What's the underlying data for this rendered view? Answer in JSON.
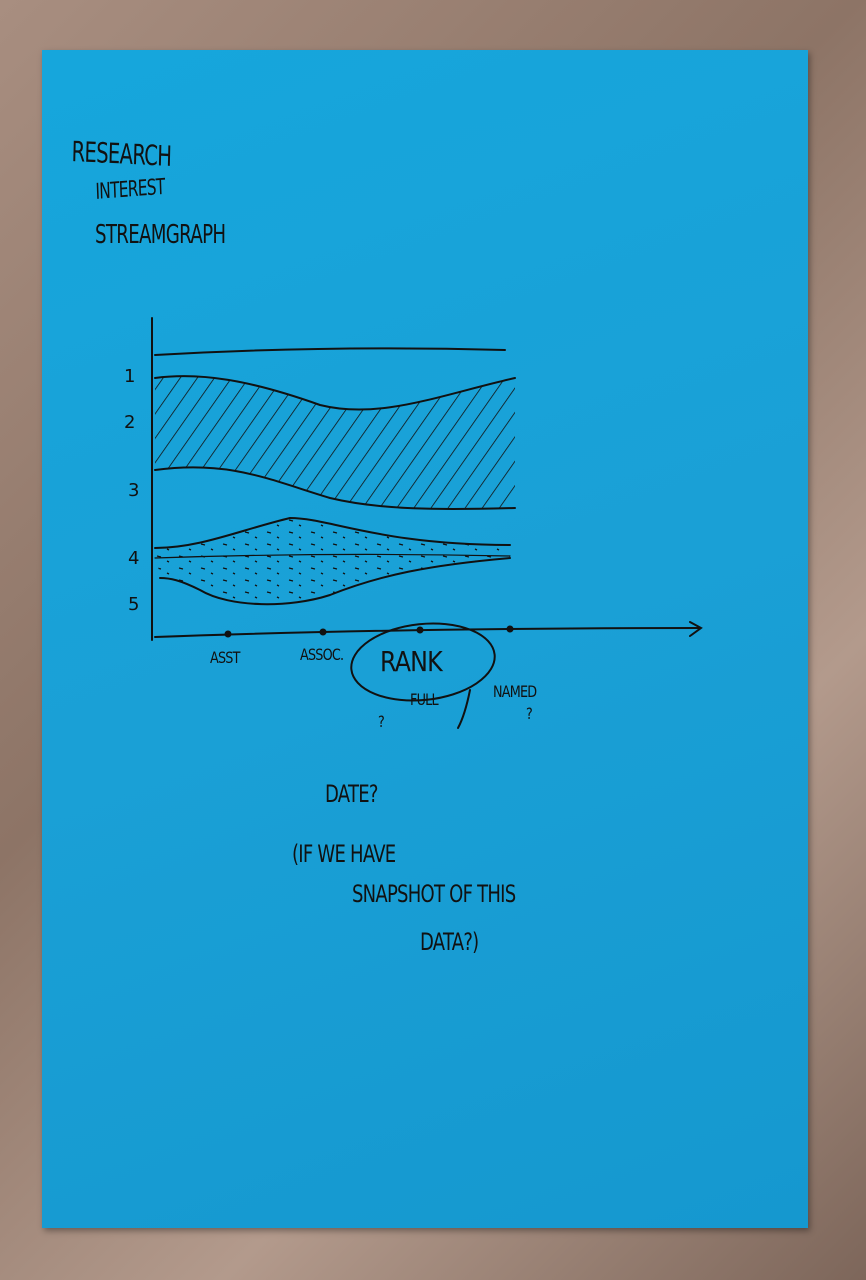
{
  "title_lines": [
    "Research",
    "Interest",
    "Streamgraph"
  ],
  "chart_data": {
    "type": "area",
    "title": "Research Interest Streamgraph",
    "y_tick_labels": [
      "1",
      "2",
      "3",
      "4",
      "5"
    ],
    "x_tick_labels": [
      "Asst",
      "Assoc.",
      "Full",
      "Named"
    ],
    "x_axis_label": "Rank",
    "x_annotations": [
      "?",
      "?"
    ],
    "grid": false
  },
  "notes": {
    "line1": "Date?",
    "line2": "(If we have",
    "line3": "snapshot of this",
    "line4": "data?)"
  },
  "colors": {
    "paper": "#1aa3d8",
    "ink": "#111111",
    "background": "#9a8174"
  }
}
